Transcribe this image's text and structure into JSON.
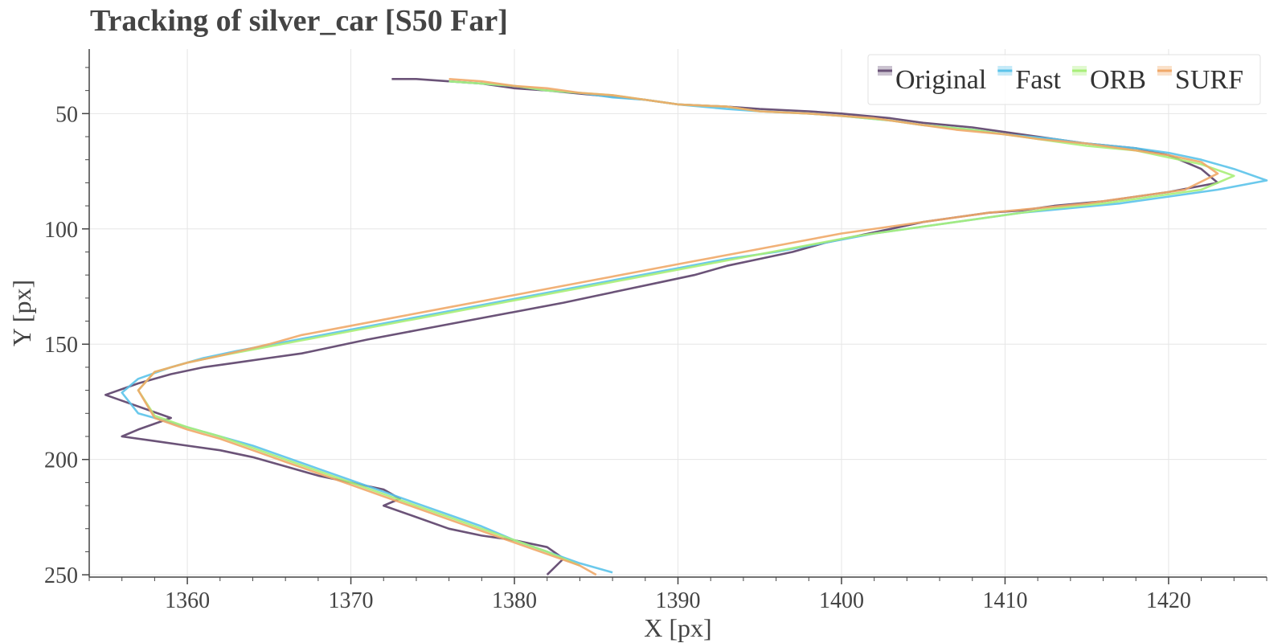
{
  "chart_data": {
    "type": "line",
    "title": "Tracking of silver_car [S50 Far]",
    "xlabel": "X [px]",
    "ylabel": "Y [px]",
    "xlim": [
      1354,
      1426
    ],
    "ylim": [
      22,
      251
    ],
    "y_inverted": true,
    "grid": true,
    "legend_position": "top-right",
    "x_ticks": [
      1360,
      1370,
      1380,
      1390,
      1400,
      1410,
      1420
    ],
    "y_ticks": [
      50,
      100,
      150,
      200,
      250
    ],
    "x_tick_labels": [
      "1360",
      "1370",
      "1380",
      "1390",
      "1400",
      "1410",
      "1420"
    ],
    "y_tick_labels": [
      "50",
      "100",
      "150",
      "200",
      "250"
    ],
    "colors": {
      "Original": "#6b5378",
      "Fast": "#5bc3ea",
      "ORB": "#a8ee78",
      "SURF": "#f0a868",
      "grid": "#e6e6e6",
      "axis": "#444444"
    },
    "series": [
      {
        "name": "Original",
        "x": [
          1372.5,
          1374,
          1376,
          1378,
          1380,
          1382,
          1385,
          1388,
          1390,
          1393,
          1395,
          1398,
          1400,
          1403,
          1405,
          1408,
          1410,
          1413,
          1415,
          1418,
          1420,
          1421,
          1422,
          1423,
          1420,
          1418,
          1416,
          1413,
          1411,
          1409,
          1407,
          1405,
          1403,
          1401,
          1399,
          1397,
          1395,
          1393,
          1391,
          1389,
          1387,
          1385,
          1383,
          1380,
          1377,
          1374,
          1371,
          1369,
          1367,
          1365,
          1363,
          1361,
          1359,
          1357,
          1355,
          1357,
          1359,
          1357,
          1356,
          1358,
          1360,
          1362,
          1364,
          1366,
          1368,
          1370,
          1372,
          1373,
          1372,
          1374,
          1376,
          1378,
          1380,
          1382,
          1383,
          1382
        ],
        "y": [
          35,
          35,
          36,
          37,
          39,
          40,
          42,
          44,
          46,
          47,
          48,
          49,
          50,
          52,
          54,
          56,
          58,
          61,
          63,
          65,
          68,
          71,
          74,
          80,
          84,
          86,
          88,
          90,
          92,
          93,
          95,
          97,
          100,
          103,
          106,
          110,
          113,
          116,
          120,
          123,
          126,
          129,
          132,
          136,
          140,
          144,
          148,
          151,
          154,
          156,
          158,
          160,
          163,
          167,
          172,
          177,
          182,
          187,
          190,
          192,
          194,
          196,
          199,
          203,
          207,
          210,
          213,
          217,
          220,
          225,
          230,
          233,
          235,
          238,
          243,
          250
        ]
      },
      {
        "name": "Fast",
        "x": [
          1376,
          1378,
          1380,
          1382,
          1384,
          1386,
          1388,
          1390,
          1393,
          1395,
          1398,
          1400,
          1403,
          1405,
          1408,
          1410,
          1413,
          1415,
          1418,
          1420,
          1422,
          1424,
          1426,
          1423,
          1420,
          1417,
          1414,
          1411,
          1408,
          1405,
          1402,
          1399,
          1396,
          1393,
          1390,
          1387,
          1384,
          1381,
          1378,
          1375,
          1372,
          1369,
          1366,
          1363,
          1361,
          1359,
          1357,
          1356,
          1357,
          1360,
          1362,
          1364,
          1366,
          1368,
          1370,
          1372,
          1374,
          1376,
          1378,
          1380,
          1382,
          1384,
          1386
        ],
        "y": [
          36,
          37,
          38,
          40,
          41,
          43,
          44,
          46,
          48,
          49,
          50,
          51,
          53,
          55,
          57,
          59,
          61,
          63,
          65,
          67,
          70,
          74,
          79,
          83,
          86,
          89,
          91,
          93,
          96,
          99,
          102,
          106,
          110,
          113,
          117,
          121,
          125,
          129,
          133,
          137,
          141,
          145,
          149,
          153,
          156,
          160,
          165,
          171,
          180,
          186,
          190,
          194,
          199,
          204,
          209,
          214,
          219,
          224,
          229,
          235,
          240,
          245,
          249
        ]
      },
      {
        "name": "ORB",
        "x": [
          1376,
          1378,
          1380,
          1382,
          1384,
          1386,
          1388,
          1390,
          1393,
          1395,
          1398,
          1400,
          1403,
          1405,
          1408,
          1410,
          1413,
          1415,
          1418,
          1420,
          1422,
          1424,
          1422,
          1419,
          1416,
          1413,
          1410,
          1407,
          1404,
          1401,
          1398,
          1395,
          1392,
          1389,
          1386,
          1383,
          1380,
          1377,
          1374,
          1371,
          1368,
          1365,
          1362,
          1360,
          1358,
          1357,
          1358,
          1360,
          1362,
          1364,
          1366,
          1368,
          1370,
          1372,
          1374,
          1376,
          1378,
          1380,
          1382,
          1384
        ],
        "y": [
          36,
          37,
          38,
          40,
          41,
          42,
          44,
          46,
          47,
          49,
          50,
          51,
          53,
          55,
          57,
          59,
          62,
          64,
          66,
          69,
          72,
          77,
          83,
          86,
          89,
          91,
          94,
          97,
          100,
          103,
          107,
          111,
          115,
          119,
          123,
          127,
          131,
          135,
          139,
          143,
          147,
          151,
          155,
          158,
          162,
          170,
          181,
          186,
          190,
          195,
          200,
          205,
          210,
          215,
          220,
          225,
          230,
          235,
          240,
          246
        ]
      },
      {
        "name": "SURF",
        "x": [
          1376,
          1378,
          1380,
          1382,
          1384,
          1386,
          1388,
          1390,
          1393,
          1395,
          1398,
          1400,
          1402,
          1405,
          1407,
          1410,
          1412,
          1415,
          1417,
          1420,
          1422,
          1423,
          1421,
          1418,
          1415,
          1412,
          1409,
          1406,
          1403,
          1400,
          1397,
          1394,
          1391,
          1388,
          1385,
          1382,
          1379,
          1376,
          1373,
          1370,
          1367,
          1365,
          1362,
          1360,
          1358,
          1357,
          1358,
          1360,
          1362,
          1364,
          1366,
          1368,
          1370,
          1372,
          1374,
          1376,
          1378,
          1380,
          1382,
          1384,
          1385
        ],
        "y": [
          35,
          36,
          38,
          39,
          41,
          42,
          44,
          46,
          47,
          49,
          50,
          51,
          52,
          55,
          57,
          59,
          61,
          63,
          65,
          68,
          71,
          76,
          83,
          86,
          89,
          91,
          93,
          96,
          99,
          102,
          106,
          110,
          114,
          118,
          122,
          126,
          130,
          134,
          138,
          142,
          146,
          150,
          155,
          158,
          162,
          170,
          182,
          187,
          191,
          196,
          201,
          206,
          211,
          216,
          221,
          226,
          231,
          236,
          241,
          246,
          250
        ]
      }
    ]
  }
}
